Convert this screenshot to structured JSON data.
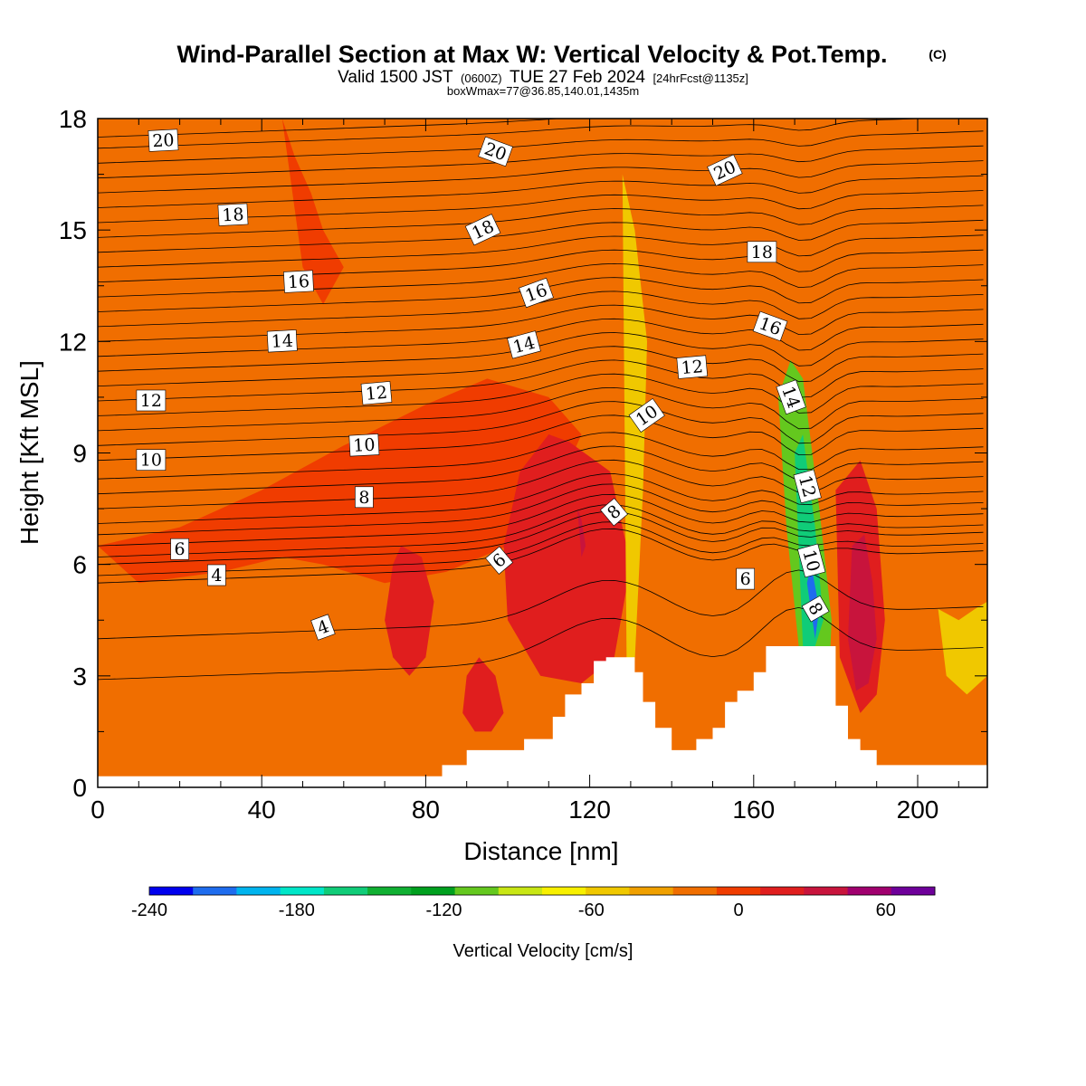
{
  "title": {
    "main": "Wind-Parallel Section at Max W: Vertical Velocity & Pot.Temp.",
    "copyright": "(C)",
    "valid_prefix": "Valid 1500 JST",
    "valid_utc": "(0600Z)",
    "valid_date": "TUE 27 Feb 2024",
    "forecast": "[24hrFcst@1135z]",
    "box_max": "boxWmax=77@36.85,140.01,1435m"
  },
  "colorbar": {
    "title": "Vertical Velocity [cm/s]",
    "colors": [
      "#0000ee",
      "#1e6cee",
      "#00b4ee",
      "#00e6c8",
      "#10cc78",
      "#10b032",
      "#00a01e",
      "#64c81e",
      "#c8e614",
      "#f8f000",
      "#f0c800",
      "#f0a000",
      "#f06e00",
      "#f03c00",
      "#e01e1e",
      "#c8143c",
      "#a0006e",
      "#6e009a"
    ],
    "labels": [
      "-240",
      "-180",
      "-120",
      "-60",
      "0",
      "60"
    ],
    "label_values": [
      -240,
      -180,
      -120,
      -60,
      0,
      60
    ],
    "min": -240,
    "max": 80,
    "step": 20
  },
  "chart_data": {
    "type": "heatmap",
    "xlabel": "Distance [nm]",
    "ylabel": "Height [Kft MSL]",
    "xlim": [
      0,
      217
    ],
    "ylim": [
      0,
      18
    ],
    "xticks": [
      0,
      40,
      80,
      120,
      160,
      200
    ],
    "yticks": [
      0,
      3,
      6,
      9,
      12,
      15,
      18
    ],
    "variable_shaded": "Vertical Velocity [cm/s]",
    "variable_contoured": "Potential Temperature",
    "terrain_kft": {
      "x": [
        0,
        84,
        84,
        87,
        87,
        90,
        90,
        97,
        97,
        104,
        104,
        111,
        111,
        114,
        114,
        118,
        118,
        121,
        121,
        124,
        124,
        131,
        131,
        133,
        133,
        136,
        136,
        140,
        140,
        146,
        146,
        150,
        150,
        153,
        153,
        156,
        156,
        160,
        160,
        163,
        163,
        180,
        180,
        183,
        183,
        186,
        186,
        190,
        190,
        217
      ],
      "y": [
        0.3,
        0.3,
        0.6,
        0.6,
        0.6,
        0.6,
        1.0,
        1.0,
        1.0,
        1.0,
        1.3,
        1.3,
        1.9,
        1.9,
        2.5,
        2.5,
        2.8,
        2.8,
        3.4,
        3.4,
        3.5,
        3.5,
        3.1,
        3.1,
        2.3,
        2.3,
        1.6,
        1.6,
        1.0,
        1.0,
        1.3,
        1.3,
        1.6,
        1.6,
        2.3,
        2.3,
        2.6,
        2.6,
        3.1,
        3.1,
        3.8,
        3.8,
        2.2,
        2.2,
        1.3,
        1.3,
        1.0,
        1.0,
        0.6,
        0.6
      ]
    },
    "shaded_regions": [
      {
        "level": 0,
        "description": "background weak ascent",
        "value": 5
      },
      {
        "value": 25,
        "x": [
          0,
          10,
          30,
          45,
          55,
          70,
          85,
          100,
          112,
          118,
          110,
          95,
          80,
          60,
          40,
          20,
          0
        ],
        "y": [
          6.5,
          5.5,
          5.8,
          6.2,
          6.0,
          5.5,
          5.8,
          6.5,
          8.0,
          9.5,
          10.5,
          11.0,
          10.3,
          9.2,
          8.0,
          7.0,
          6.5
        ]
      },
      {
        "value": 25,
        "x": [
          45,
          48,
          52,
          55,
          60,
          55,
          50,
          45
        ],
        "y": [
          18,
          17,
          16,
          15,
          14,
          13,
          14,
          18
        ]
      },
      {
        "value": 45,
        "x": [
          115,
          125,
          130,
          126,
          118,
          108,
          100,
          99,
          103,
          110,
          115
        ],
        "y": [
          9.3,
          8.5,
          6.0,
          3.5,
          2.8,
          3.0,
          4.5,
          6.5,
          8.5,
          9.5,
          9.3
        ]
      },
      {
        "value": 45,
        "x": [
          74,
          79,
          82,
          80,
          76,
          72,
          70,
          72,
          74
        ],
        "y": [
          6.5,
          6.2,
          5.0,
          3.5,
          3.0,
          3.5,
          4.5,
          6.0,
          6.5
        ]
      },
      {
        "value": 45,
        "x": [
          93,
          97,
          99,
          96,
          92,
          89,
          90,
          93
        ],
        "y": [
          3.5,
          3.0,
          2.0,
          1.5,
          1.5,
          2.0,
          3.0,
          3.5
        ]
      },
      {
        "value": 65,
        "x": [
          117,
          118,
          119,
          118,
          117
        ],
        "y": [
          7.5,
          7.2,
          6.5,
          6.2,
          7.5
        ]
      },
      {
        "value": -30,
        "x": [
          128,
          131,
          134,
          133,
          131,
          129,
          128
        ],
        "y": [
          16.5,
          15.0,
          12.0,
          8.0,
          3.4,
          3.4,
          16.5
        ]
      },
      {
        "value": -90,
        "x": [
          166,
          169,
          172,
          176,
          179,
          178,
          174,
          171,
          168,
          166
        ],
        "y": [
          10.5,
          11.5,
          11.0,
          7.5,
          4.5,
          2.0,
          2.0,
          3.8,
          7.0,
          10.5
        ]
      },
      {
        "value": -150,
        "x": [
          170,
          172,
          175,
          177,
          175,
          172,
          170
        ],
        "y": [
          9.0,
          9.5,
          7.0,
          4.5,
          3.8,
          3.8,
          9.0
        ]
      },
      {
        "value": -210,
        "x": [
          173,
          174,
          176,
          175,
          173
        ],
        "y": [
          5.5,
          6.0,
          4.8,
          4.0,
          5.5
        ]
      },
      {
        "value": 45,
        "x": [
          180,
          186,
          190,
          192,
          190,
          186,
          181,
          180
        ],
        "y": [
          8.0,
          8.8,
          7.5,
          4.5,
          2.5,
          2.0,
          3.5,
          8.0
        ]
      },
      {
        "value": 65,
        "x": [
          184,
          187,
          189,
          190,
          188,
          185,
          183,
          184
        ],
        "y": [
          6.5,
          6.8,
          5.5,
          4.0,
          2.8,
          2.6,
          4.0,
          6.5
        ]
      },
      {
        "value": -30,
        "x": [
          205,
          210,
          214,
          217,
          217,
          212,
          207,
          205
        ],
        "y": [
          4.8,
          4.5,
          4.8,
          5.0,
          3.0,
          2.5,
          3.0,
          4.8
        ]
      }
    ],
    "contour_labels": [
      {
        "text": "20",
        "x": 16,
        "y": 17.4,
        "angle": -3
      },
      {
        "text": "20",
        "x": 97,
        "y": 17.1,
        "angle": 20
      },
      {
        "text": "20",
        "x": 153,
        "y": 16.6,
        "angle": -25
      },
      {
        "text": "18",
        "x": 33,
        "y": 15.4,
        "angle": -3
      },
      {
        "text": "18",
        "x": 94,
        "y": 15.0,
        "angle": -25
      },
      {
        "text": "18",
        "x": 162,
        "y": 14.4,
        "angle": 0
      },
      {
        "text": "16",
        "x": 49,
        "y": 13.6,
        "angle": -3
      },
      {
        "text": "16",
        "x": 107,
        "y": 13.3,
        "angle": -20
      },
      {
        "text": "16",
        "x": 164,
        "y": 12.4,
        "angle": 20
      },
      {
        "text": "14",
        "x": 45,
        "y": 12.0,
        "angle": -3
      },
      {
        "text": "14",
        "x": 104,
        "y": 11.9,
        "angle": -15
      },
      {
        "text": "14",
        "x": 169,
        "y": 10.5,
        "angle": 70
      },
      {
        "text": "12",
        "x": 13,
        "y": 10.4,
        "angle": 0
      },
      {
        "text": "12",
        "x": 68,
        "y": 10.6,
        "angle": -5
      },
      {
        "text": "12",
        "x": 145,
        "y": 11.3,
        "angle": -5
      },
      {
        "text": "12",
        "x": 173,
        "y": 8.1,
        "angle": 75
      },
      {
        "text": "10",
        "x": 13,
        "y": 8.8,
        "angle": 0
      },
      {
        "text": "10",
        "x": 65,
        "y": 9.2,
        "angle": -3
      },
      {
        "text": "10",
        "x": 134,
        "y": 10.0,
        "angle": -35
      },
      {
        "text": "10",
        "x": 174,
        "y": 6.1,
        "angle": 75
      },
      {
        "text": "8",
        "x": 65,
        "y": 7.8,
        "angle": 0
      },
      {
        "text": "8",
        "x": 126,
        "y": 7.4,
        "angle": -40
      },
      {
        "text": "8",
        "x": 175,
        "y": 4.8,
        "angle": 60
      },
      {
        "text": "6",
        "x": 20,
        "y": 6.4,
        "angle": 0
      },
      {
        "text": "6",
        "x": 98,
        "y": 6.1,
        "angle": -40
      },
      {
        "text": "6",
        "x": 158,
        "y": 5.6,
        "angle": 0
      },
      {
        "text": "4",
        "x": 29,
        "y": 5.7,
        "angle": 0
      },
      {
        "text": "4",
        "x": 55,
        "y": 4.3,
        "angle": -20
      }
    ],
    "isentropes_left_kft": [
      2.9,
      4.0,
      5.5,
      5.7,
      6.0,
      6.2,
      6.5,
      6.8,
      7.1,
      7.5,
      7.9,
      8.3,
      8.8,
      9.2,
      9.6,
      10.0,
      10.4,
      10.8,
      11.2,
      11.6,
      12.0,
      12.4,
      12.8,
      13.2,
      13.6,
      14.0,
      14.4,
      14.8,
      15.2,
      15.6,
      16.0,
      16.4,
      16.8,
      17.2,
      17.5
    ]
  }
}
